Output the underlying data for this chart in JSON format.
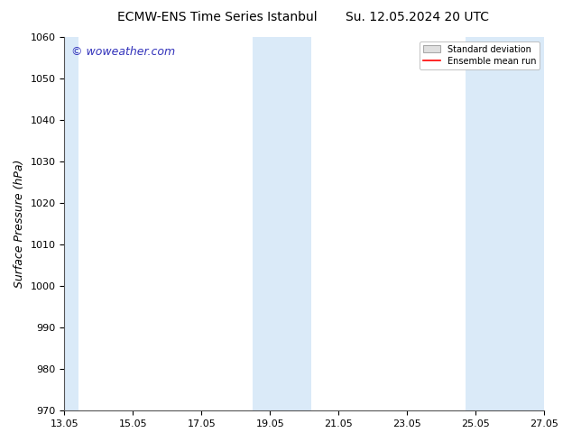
{
  "title_left": "ECMW-ENS Time Series Istanbul",
  "title_right": "Su. 12.05.2024 20 UTC",
  "ylabel": "Surface Pressure (hPa)",
  "xlim_start": 0,
  "xlim_end": 14,
  "ylim": [
    970,
    1060
  ],
  "yticks": [
    970,
    980,
    990,
    1000,
    1010,
    1020,
    1030,
    1040,
    1050,
    1060
  ],
  "xtick_labels": [
    "13.05",
    "15.05",
    "17.05",
    "19.05",
    "21.05",
    "23.05",
    "25.05",
    "27.05"
  ],
  "xtick_positions": [
    0,
    2,
    4,
    6,
    8,
    10,
    12,
    14
  ],
  "shaded_regions": [
    {
      "x_start": 0.0,
      "x_end": 0.4
    },
    {
      "x_start": 5.5,
      "x_end": 7.2
    },
    {
      "x_start": 11.7,
      "x_end": 14.0
    }
  ],
  "shaded_color": "#daeaf8",
  "background_color": "#ffffff",
  "plot_bg_color": "#ffffff",
  "title_fontsize": 10,
  "watermark_text": "© woweather.com",
  "watermark_color": "#3333bb",
  "legend_std_label": "Standard deviation",
  "legend_ens_label": "Ensemble mean run",
  "legend_std_facecolor": "#e0e0e0",
  "legend_std_edgecolor": "#aaaaaa",
  "legend_ens_color": "#ff0000",
  "tick_fontsize": 8,
  "label_fontsize": 9,
  "watermark_fontsize": 9,
  "spine_color": "#555555"
}
